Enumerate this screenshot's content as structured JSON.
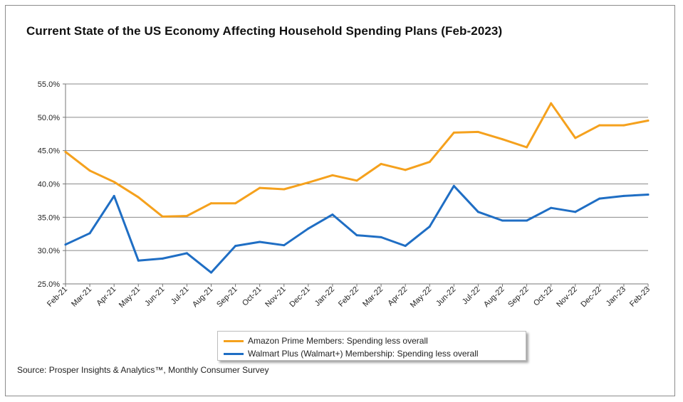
{
  "chart_data": {
    "type": "line",
    "title": "Current State of the US Economy Affecting Household Spending Plans (Feb-2023)",
    "categories": [
      "Feb-21",
      "Mar-21",
      "Apr-21",
      "May-21",
      "Jun-21",
      "Jul-21",
      "Aug-21",
      "Sep-21",
      "Oct-21",
      "Nov-21",
      "Dec-21",
      "Jan-22",
      "Feb-22",
      "Mar-22",
      "Apr-22",
      "May-22",
      "Jun-22",
      "Jul-22",
      "Aug-22",
      "Sep-22",
      "Oct-22",
      "Nov-22",
      "Dec-22",
      "Jan-23",
      "Feb-23"
    ],
    "yticks": [
      "55.0%",
      "50.0%",
      "45.0%",
      "40.0%",
      "35.0%",
      "30.0%",
      "25.0%"
    ],
    "ylim": [
      25,
      55
    ],
    "ystep": 5,
    "grid": true,
    "series": [
      {
        "name": "Amazon Prime Members: Spending less overall",
        "color": "#f5a11d",
        "values": [
          44.8,
          42.0,
          40.3,
          38.0,
          35.1,
          35.2,
          37.1,
          37.1,
          39.4,
          39.2,
          40.2,
          41.3,
          40.5,
          43.0,
          42.1,
          43.3,
          47.7,
          47.8,
          46.7,
          45.5,
          52.1,
          46.9,
          48.8,
          48.8,
          49.5
        ]
      },
      {
        "name": "Walmart Plus (Walmart+) Membership: Spending less overall",
        "color": "#1f6ec4",
        "values": [
          30.9,
          32.6,
          38.2,
          28.5,
          28.8,
          29.6,
          26.7,
          30.7,
          31.3,
          30.8,
          33.3,
          35.4,
          32.3,
          32.0,
          30.7,
          33.6,
          39.7,
          35.8,
          34.5,
          34.5,
          36.4,
          35.8,
          37.8,
          38.2,
          38.4
        ]
      }
    ],
    "legend_position": "bottom"
  },
  "source": "Source: Prosper Insights & Analytics™, Monthly Consumer Survey"
}
